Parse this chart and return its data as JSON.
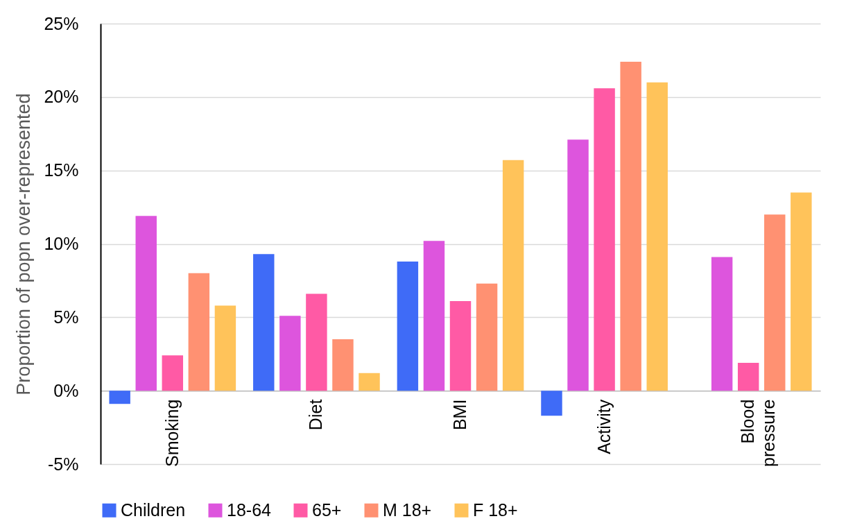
{
  "chart_data": {
    "type": "bar",
    "ylabel": "Proportion of popn over-represented",
    "categories": [
      "Smoking",
      "Diet",
      "BMI",
      "Activity",
      "Blood pressure"
    ],
    "series": [
      {
        "name": "Children",
        "color": "#3f6bf7",
        "values": [
          -0.9,
          9.3,
          8.8,
          -1.7,
          null
        ]
      },
      {
        "name": "18-64",
        "color": "#dd55dd",
        "values": [
          11.9,
          5.1,
          10.2,
          17.1,
          9.1
        ]
      },
      {
        "name": "65+",
        "color": "#ff5aa5",
        "values": [
          2.4,
          6.6,
          6.1,
          20.6,
          1.9
        ]
      },
      {
        "name": "M 18+",
        "color": "#ff9172",
        "values": [
          8.0,
          3.5,
          7.3,
          22.4,
          12.0
        ]
      },
      {
        "name": "F 18+",
        "color": "#ffc35a",
        "values": [
          5.8,
          1.2,
          15.7,
          21.0,
          13.5
        ]
      }
    ],
    "ylim": [
      -5,
      25
    ],
    "yticks": [
      {
        "value": -5,
        "label": "-5%"
      },
      {
        "value": 0,
        "label": "0%"
      },
      {
        "value": 5,
        "label": "5%"
      },
      {
        "value": 10,
        "label": "10%"
      },
      {
        "value": 15,
        "label": "15%"
      },
      {
        "value": 20,
        "label": "20%"
      },
      {
        "value": 25,
        "label": "25%"
      }
    ],
    "grid": "y",
    "legend": "bottom"
  }
}
